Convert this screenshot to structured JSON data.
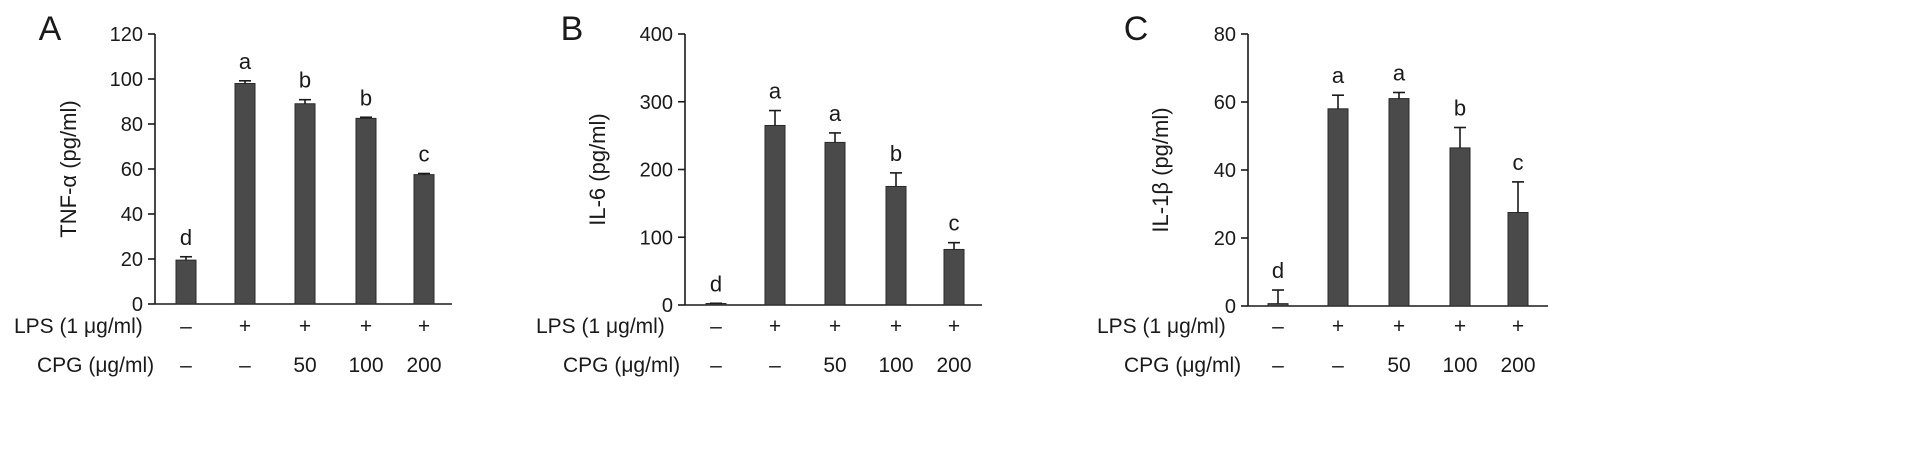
{
  "chart_data": [
    {
      "type": "bar",
      "panel_letter": "A",
      "ylabel": "TNF-α (pg/ml)",
      "ylim": [
        0,
        120
      ],
      "yticks": [
        0,
        20,
        40,
        60,
        80,
        100,
        120
      ],
      "values": [
        19.5,
        98,
        89,
        82.5,
        57.5
      ],
      "errors": [
        1.5,
        1.2,
        1.8,
        0.5,
        0.5
      ],
      "significance": [
        "d",
        "a",
        "b",
        "b",
        "c"
      ]
    },
    {
      "type": "bar",
      "panel_letter": "B",
      "ylabel": "IL-6 (pg/ml)",
      "ylim": [
        0,
        400
      ],
      "yticks": [
        0,
        100,
        200,
        300,
        400
      ],
      "values": [
        2,
        265,
        240,
        175,
        82
      ],
      "errors": [
        0.5,
        22,
        14,
        20,
        10
      ],
      "significance": [
        "d",
        "a",
        "a",
        "b",
        "c"
      ]
    },
    {
      "type": "bar",
      "panel_letter": "C",
      "ylabel": "IL-1β (pg/ml)",
      "ylim": [
        0,
        80
      ],
      "yticks": [
        0,
        20,
        40,
        60,
        80
      ],
      "values": [
        0.7,
        58,
        61,
        46.5,
        27.5
      ],
      "errors": [
        4,
        4,
        1.8,
        6,
        9
      ],
      "significance": [
        "d",
        "a",
        "a",
        "b",
        "c"
      ]
    }
  ],
  "conditions": {
    "lps_label": "LPS (1 μg/ml)",
    "cpg_label": "CPG (μg/ml)",
    "lps": [
      "–",
      "+",
      "+",
      "+",
      "+"
    ],
    "cpg": [
      "–",
      "–",
      "50",
      "100",
      "200"
    ]
  },
  "colors": {
    "bar": "#4a4a4a",
    "axis": "#1a1a1a"
  }
}
